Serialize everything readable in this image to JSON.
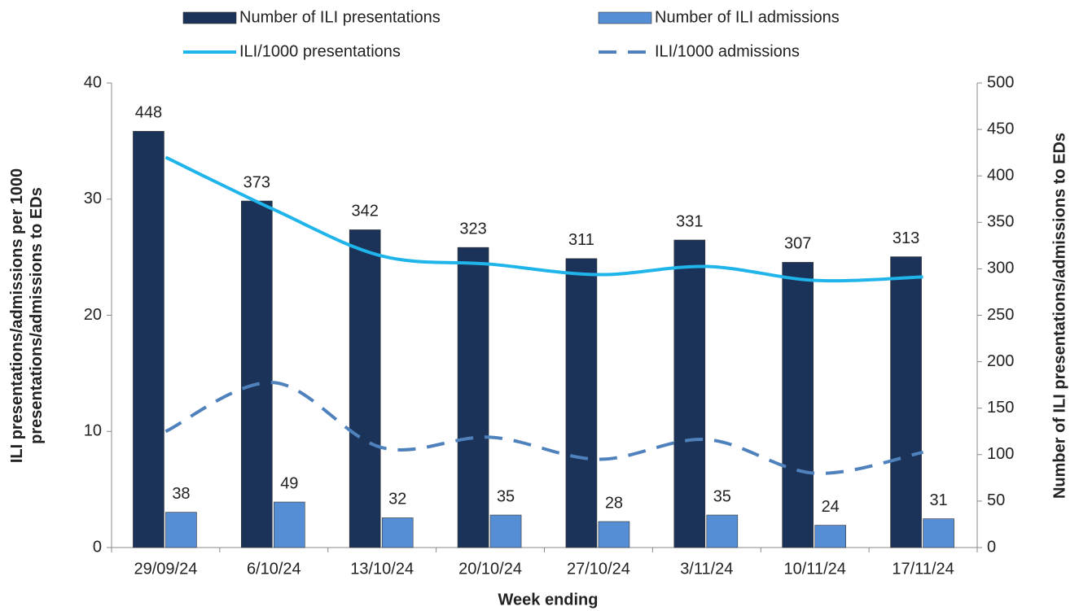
{
  "chart_data": {
    "type": "bar-line",
    "categories": [
      "29/09/24",
      "6/10/24",
      "13/10/24",
      "20/10/24",
      "27/10/24",
      "3/11/24",
      "10/11/24",
      "17/11/24"
    ],
    "series": [
      {
        "name": "Number of ILI presentations",
        "type": "bar",
        "axis": "y2",
        "color": "#1b3358",
        "values": [
          448,
          373,
          342,
          323,
          311,
          331,
          307,
          313
        ]
      },
      {
        "name": "Number of ILI admissions",
        "type": "bar",
        "axis": "y2",
        "color": "#558ed5",
        "values": [
          38,
          49,
          32,
          35,
          28,
          35,
          24,
          31
        ]
      },
      {
        "name": "ILI/1000 presentations",
        "type": "line",
        "axis": "y",
        "color": "#1fb4ea",
        "dashed": false,
        "values": [
          33.6,
          29.1,
          25.1,
          24.4,
          23.5,
          24.2,
          23.0,
          23.3
        ]
      },
      {
        "name": "ILI/1000 admissions",
        "type": "line",
        "axis": "y",
        "color": "#4f81bd",
        "dashed": true,
        "values": [
          10.0,
          14.2,
          8.6,
          9.5,
          7.6,
          9.3,
          6.4,
          8.2
        ]
      }
    ],
    "xlabel": "Week ending",
    "ylabel": [
      "ILI presentations/admissions per 1000",
      "presentations/admissions to EDs"
    ],
    "y2label": "Number of ILI presentations/admissions to EDs",
    "ylim": [
      0,
      40
    ],
    "yticks": [
      0,
      10,
      20,
      30,
      40
    ],
    "y2lim": [
      0,
      500
    ],
    "y2ticks": [
      0,
      50,
      100,
      150,
      200,
      250,
      300,
      350,
      400,
      450,
      500
    ]
  }
}
